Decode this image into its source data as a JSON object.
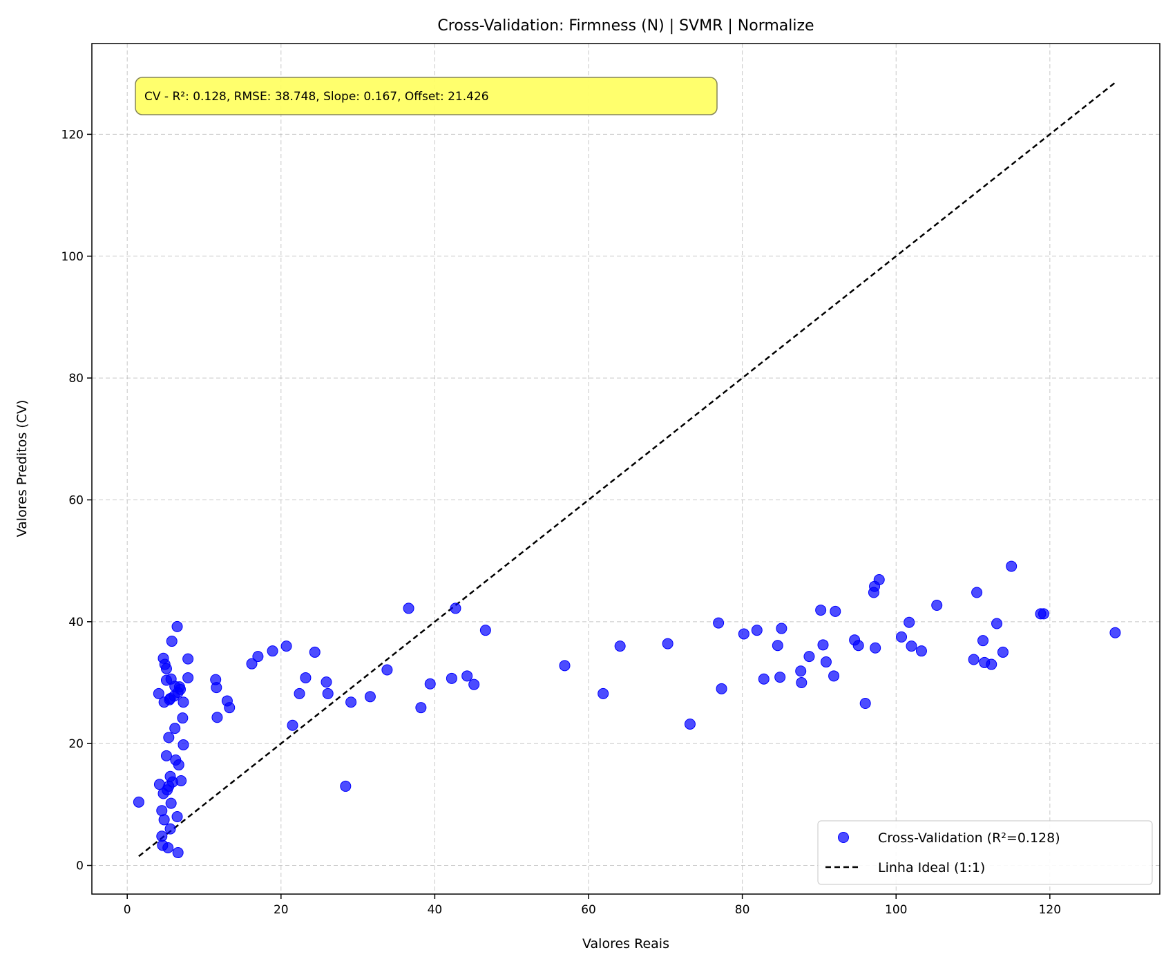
{
  "chart_data": {
    "type": "scatter",
    "title": "Cross-Validation: Firmness (N) | SVMR | Normalize",
    "xlabel": "Valores Reais",
    "ylabel": "Valores Preditos (CV)",
    "xlim": [
      -4.6,
      134.3
    ],
    "ylim": [
      -4.7,
      134.9
    ],
    "xticks": [
      0,
      20,
      40,
      60,
      80,
      100,
      120
    ],
    "yticks": [
      0,
      20,
      40,
      60,
      80,
      100,
      120
    ],
    "grid": true,
    "legend_position": "lower-right",
    "annotation": "CV - R²: 0.128, RMSE: 38.748, Slope: 0.167, Offset: 21.426",
    "colors": {
      "points": "#0000ff",
      "ideal_line": "#000000",
      "annotation_bg": "#ffff66"
    },
    "series": [
      {
        "name": "Cross-Validation (R²=0.128)",
        "type": "scatter",
        "points": [
          [
            1.5,
            10.4
          ],
          [
            4.1,
            28.2
          ],
          [
            4.2,
            13.3
          ],
          [
            4.5,
            9.0
          ],
          [
            4.5,
            4.8
          ],
          [
            4.6,
            3.3
          ],
          [
            4.7,
            11.8
          ],
          [
            4.8,
            7.5
          ],
          [
            4.7,
            34.0
          ],
          [
            4.8,
            26.8
          ],
          [
            4.9,
            33.0
          ],
          [
            5.1,
            32.3
          ],
          [
            5.1,
            30.4
          ],
          [
            5.1,
            18.0
          ],
          [
            5.2,
            12.4
          ],
          [
            5.3,
            2.9
          ],
          [
            5.4,
            13.0
          ],
          [
            5.4,
            21.0
          ],
          [
            5.5,
            27.2
          ],
          [
            5.6,
            27.4
          ],
          [
            5.6,
            14.6
          ],
          [
            5.7,
            10.2
          ],
          [
            5.6,
            6.0
          ],
          [
            5.7,
            30.6
          ],
          [
            5.8,
            36.8
          ],
          [
            5.9,
            13.7
          ],
          [
            6.1,
            27.8
          ],
          [
            6.2,
            22.5
          ],
          [
            6.2,
            29.4
          ],
          [
            6.3,
            17.3
          ],
          [
            6.5,
            39.2
          ],
          [
            6.5,
            8.0
          ],
          [
            6.6,
            28.4
          ],
          [
            6.7,
            16.5
          ],
          [
            6.6,
            2.1
          ],
          [
            6.8,
            29.3
          ],
          [
            6.9,
            28.9
          ],
          [
            7.0,
            13.9
          ],
          [
            7.2,
            24.2
          ],
          [
            7.3,
            19.8
          ],
          [
            7.3,
            26.8
          ],
          [
            7.9,
            33.9
          ],
          [
            7.9,
            30.8
          ],
          [
            11.5,
            30.5
          ],
          [
            11.6,
            29.2
          ],
          [
            11.7,
            24.3
          ],
          [
            13.0,
            27.0
          ],
          [
            13.3,
            25.9
          ],
          [
            16.2,
            33.1
          ],
          [
            17.0,
            34.3
          ],
          [
            18.9,
            35.2
          ],
          [
            20.7,
            36.0
          ],
          [
            21.5,
            23.0
          ],
          [
            22.4,
            28.2
          ],
          [
            23.2,
            30.8
          ],
          [
            24.4,
            35.0
          ],
          [
            25.9,
            30.1
          ],
          [
            26.1,
            28.2
          ],
          [
            28.4,
            13.0
          ],
          [
            29.1,
            26.8
          ],
          [
            31.6,
            27.7
          ],
          [
            33.8,
            32.1
          ],
          [
            36.6,
            42.2
          ],
          [
            38.2,
            25.9
          ],
          [
            39.4,
            29.8
          ],
          [
            42.2,
            30.7
          ],
          [
            42.7,
            42.2
          ],
          [
            44.2,
            31.1
          ],
          [
            45.1,
            29.7
          ],
          [
            46.6,
            38.6
          ],
          [
            56.9,
            32.8
          ],
          [
            61.9,
            28.2
          ],
          [
            64.1,
            36.0
          ],
          [
            70.3,
            36.4
          ],
          [
            73.2,
            23.2
          ],
          [
            76.9,
            39.8
          ],
          [
            77.3,
            29.0
          ],
          [
            80.2,
            38.0
          ],
          [
            81.9,
            38.6
          ],
          [
            82.8,
            30.6
          ],
          [
            84.6,
            36.1
          ],
          [
            84.9,
            30.9
          ],
          [
            85.1,
            38.9
          ],
          [
            87.6,
            31.9
          ],
          [
            87.7,
            30.0
          ],
          [
            88.7,
            34.3
          ],
          [
            90.2,
            41.9
          ],
          [
            90.5,
            36.2
          ],
          [
            90.9,
            33.4
          ],
          [
            91.9,
            31.1
          ],
          [
            92.1,
            41.7
          ],
          [
            94.6,
            37.0
          ],
          [
            95.1,
            36.1
          ],
          [
            96.0,
            26.6
          ],
          [
            97.1,
            44.8
          ],
          [
            97.2,
            45.8
          ],
          [
            97.3,
            35.7
          ],
          [
            97.8,
            46.9
          ],
          [
            100.7,
            37.5
          ],
          [
            101.7,
            39.9
          ],
          [
            102.0,
            36.0
          ],
          [
            103.3,
            35.2
          ],
          [
            105.3,
            42.7
          ],
          [
            110.1,
            33.8
          ],
          [
            110.5,
            44.8
          ],
          [
            111.3,
            36.9
          ],
          [
            111.5,
            33.3
          ],
          [
            112.4,
            33.0
          ],
          [
            113.1,
            39.7
          ],
          [
            113.9,
            35.0
          ],
          [
            115.0,
            49.1
          ],
          [
            118.8,
            41.3
          ],
          [
            119.2,
            41.3
          ],
          [
            128.5,
            38.2
          ]
        ]
      },
      {
        "name": "Linha Ideal (1:1)",
        "type": "line",
        "x": [
          1.5,
          128.5
        ],
        "y": [
          1.5,
          128.5
        ]
      }
    ]
  }
}
